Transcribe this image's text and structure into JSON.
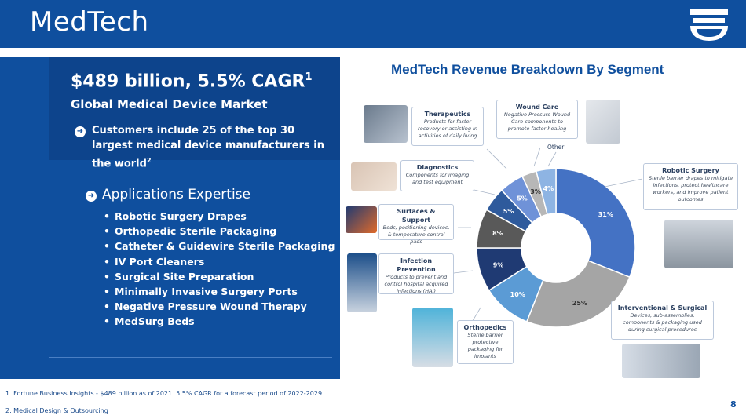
{
  "header": {
    "title": "MedTech"
  },
  "stat": {
    "main": "$489 billion, 5.5% CAGR",
    "main_sup": "1",
    "sub": "Global Medical Device Market"
  },
  "customers": {
    "text": "Customers include 25 of the top 30 largest medical device manufacturers in the world",
    "sup": "2"
  },
  "applications": {
    "title": "Applications Expertise",
    "items": [
      "Robotic Surgery Drapes",
      "Orthopedic Sterile Packaging",
      "Catheter & Guidewire Sterile Packaging",
      "IV Port Cleaners",
      "Surgical Site Preparation",
      "Minimally Invasive Surgery Ports",
      "Negative Pressure Wound Therapy",
      "MedSurg Beds"
    ]
  },
  "footnotes": [
    "1. Fortune Business Insights - $489 billion as of 2021. 5.5% CAGR for a forecast period of 2022-2029.",
    "2. Medical Design & Outsourcing"
  ],
  "page_number": "8",
  "callouts": {
    "therapeutics": {
      "title": "Therapeutics",
      "desc": "Products for faster recovery or assisting in activities of daily living"
    },
    "wound_care": {
      "title": "Wound Care",
      "desc": "Negative Pressure Wound Care components to promote faster healing"
    },
    "other": {
      "title": "Other"
    },
    "robotic": {
      "title": "Robotic Surgery",
      "desc": "Sterile barrier drapes to mitigate infections, protect healthcare workers, and improve patient outcomes"
    },
    "diagnostics": {
      "title": "Diagnostics",
      "desc": "Components for imaging and test equipment"
    },
    "surfaces": {
      "title": "Surfaces & Support",
      "desc": "Beds, positioning devices, & temperature control pads"
    },
    "infection": {
      "title": "Infection Prevention",
      "desc": "Products to prevent and control hospital acquired infections (HAI)"
    },
    "orthopedics": {
      "title": "Orthopedics",
      "desc": "Sterile barrier protective packaging for implants"
    },
    "interventional": {
      "title": "Interventional & Surgical",
      "desc": "Devices, sub-assemblies, components & packaging used during surgical procedures"
    }
  },
  "colors": {
    "brand": "#0f4f9e",
    "dark_panel": "#0d448c"
  },
  "chart_data": {
    "type": "pie",
    "title": "MedTech Revenue Breakdown By Segment",
    "donut": true,
    "categories": [
      "Robotic Surgery",
      "Interventional & Surgical",
      "Orthopedics",
      "Infection Prevention",
      "Surfaces & Support",
      "Diagnostics",
      "Therapeutics",
      "Wound Care",
      "Other"
    ],
    "values": [
      31,
      25,
      10,
      9,
      8,
      5,
      5,
      3,
      4
    ],
    "labels": [
      "31%",
      "25%",
      "10%",
      "9%",
      "8%",
      "5%",
      "5%",
      "3%",
      "4%"
    ],
    "colors": [
      "#4472c4",
      "#a5a5a5",
      "#5b9bd5",
      "#1f3a73",
      "#595959",
      "#2e5a9c",
      "#6f92d8",
      "#b7b7b7",
      "#8eb4e3"
    ]
  }
}
